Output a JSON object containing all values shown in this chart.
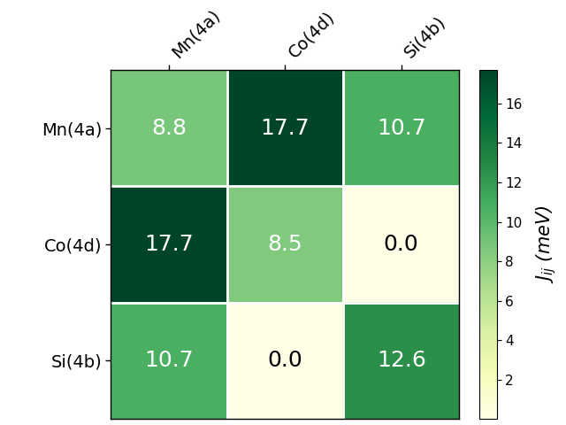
{
  "labels": [
    "Mn(4a)",
    "Co(4d)",
    "Si(4b)"
  ],
  "matrix": [
    [
      8.8,
      17.7,
      10.7
    ],
    [
      17.7,
      8.5,
      0.0
    ],
    [
      10.7,
      0.0,
      12.6
    ]
  ],
  "vmin": 0,
  "vmax": 17.7,
  "colormap": "YlGn",
  "colorbar_label": "$J_{ij}$ (meV)",
  "colorbar_ticks": [
    2,
    4,
    6,
    8,
    10,
    12,
    14,
    16
  ],
  "text_threshold_white": 0.45,
  "text_color_light": "white",
  "text_color_dark": "black",
  "fontsize_values": 18,
  "fontsize_labels": 14,
  "fontsize_colorbar": 15
}
